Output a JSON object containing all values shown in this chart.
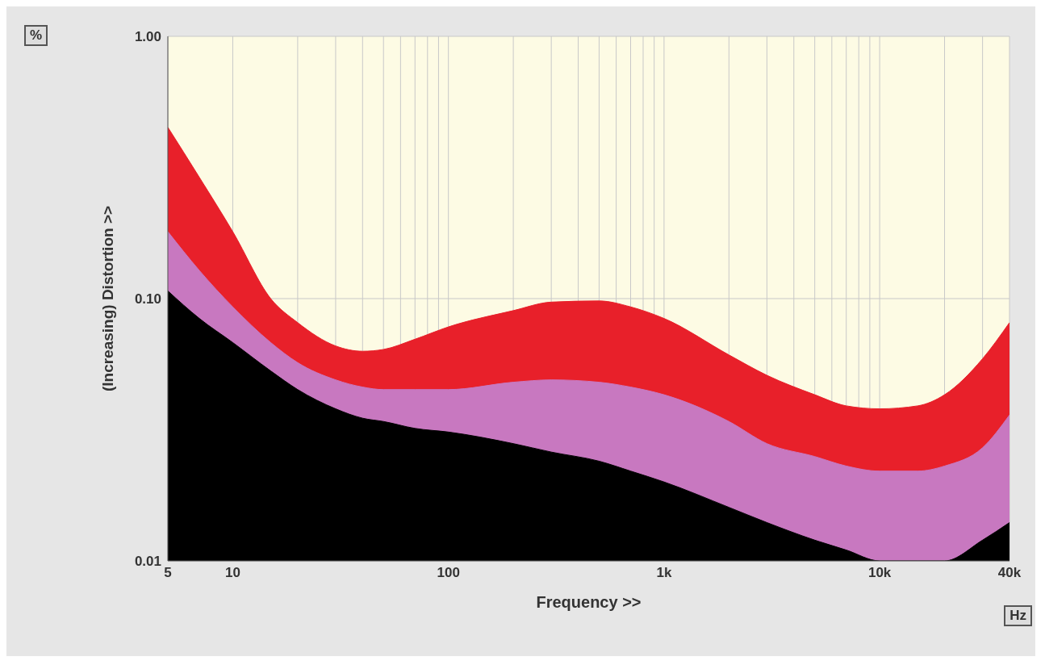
{
  "chart_data": {
    "type": "area",
    "xlabel": "Frequency >>",
    "ylabel": "(Increasing) Distortion >>",
    "annotations": [
      "%",
      "Hz"
    ],
    "log": "xy",
    "grid": true,
    "legend": false,
    "x": [
      5,
      7,
      10,
      15,
      20,
      30,
      40,
      50,
      70,
      100,
      200,
      300,
      500,
      700,
      1000,
      2000,
      3000,
      5000,
      7000,
      10000,
      15000,
      20000,
      30000,
      40000
    ],
    "xlim": [
      5,
      40000
    ],
    "ylim": [
      0.01,
      1
    ],
    "xticks": [
      5,
      10,
      {
        "value": 20,
        "label": null
      },
      {
        "value": 30,
        "label": null
      },
      {
        "value": 40,
        "label": null
      },
      {
        "value": 50,
        "label": null
      },
      {
        "value": 60,
        "label": null
      },
      {
        "value": 70,
        "label": null
      },
      {
        "value": 80,
        "label": null
      },
      {
        "value": 90,
        "label": null
      },
      100,
      {
        "value": 200,
        "label": null
      },
      {
        "value": 300,
        "label": null
      },
      {
        "value": 400,
        "label": null
      },
      {
        "value": 500,
        "label": null
      },
      {
        "value": 600,
        "label": null
      },
      {
        "value": 700,
        "label": null
      },
      {
        "value": 800,
        "label": null
      },
      {
        "value": 900,
        "label": null
      },
      {
        "value": 1000,
        "label": "1k"
      },
      {
        "value": 2000,
        "label": null
      },
      {
        "value": 3000,
        "label": null
      },
      {
        "value": 4000,
        "label": null
      },
      {
        "value": 5000,
        "label": null
      },
      {
        "value": 6000,
        "label": null
      },
      {
        "value": 7000,
        "label": null
      },
      {
        "value": 8000,
        "label": null
      },
      {
        "value": 9000,
        "label": null
      },
      {
        "value": 10000,
        "label": "10k"
      },
      {
        "value": 20000,
        "label": null
      },
      {
        "value": 30000,
        "label": null
      },
      {
        "value": 40000,
        "label": "40k"
      }
    ],
    "yticks": [
      {
        "value": 0.01,
        "label": "0.01"
      },
      {
        "value": 0.1,
        "label": "0.10"
      },
      {
        "value": 1,
        "label": "1.00"
      }
    ],
    "series": [
      {
        "color": "#e8202a",
        "values": [
          0.45,
          0.29,
          0.18,
          0.1,
          0.081,
          0.066,
          0.063,
          0.064,
          0.07,
          0.078,
          0.09,
          0.097,
          0.098,
          0.093,
          0.084,
          0.061,
          0.051,
          0.043,
          0.039,
          0.038,
          0.039,
          0.043,
          0.059,
          0.081
        ]
      },
      {
        "color": "#c878c0",
        "values": [
          0.18,
          0.128,
          0.093,
          0.068,
          0.057,
          0.049,
          0.046,
          0.045,
          0.045,
          0.045,
          0.048,
          0.049,
          0.048,
          0.046,
          0.043,
          0.034,
          0.028,
          0.025,
          0.023,
          0.022,
          0.022,
          0.023,
          0.027,
          0.036
        ]
      },
      {
        "color": "#000000",
        "values": [
          0.107,
          0.084,
          0.068,
          0.053,
          0.045,
          0.038,
          0.035,
          0.034,
          0.032,
          0.031,
          0.028,
          0.026,
          0.024,
          0.022,
          0.02,
          0.016,
          0.014,
          0.012,
          0.011,
          0.01,
          0.01,
          0.01,
          0.012,
          0.014
        ]
      }
    ]
  }
}
